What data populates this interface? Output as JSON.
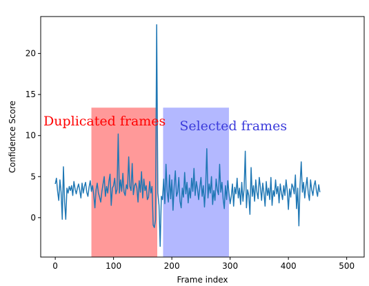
{
  "chart_data": {
    "type": "line",
    "title": "",
    "xlabel": "Frame index",
    "ylabel": "Confidence Score",
    "xlim": [
      -25,
      530
    ],
    "ylim": [
      -4.8,
      24.5
    ],
    "xticks": [
      0,
      100,
      200,
      300,
      400,
      500
    ],
    "yticks": [
      0,
      5,
      10,
      15,
      20
    ],
    "grid": false,
    "line_color": "#1f77b4",
    "regions": [
      {
        "label": "Duplicated frames",
        "x0": 62,
        "x1": 175,
        "y0": -4.8,
        "y1": 13.4,
        "color": "#ff9999",
        "text_color": "#ff0000"
      },
      {
        "label": "Selected frames",
        "x0": 185,
        "x1": 298,
        "y0": -4.8,
        "y1": 13.4,
        "color": "#b3b8ff",
        "text_color": "#3b3bdb"
      }
    ],
    "series": [
      {
        "x0": 0,
        "step": 2,
        "values": [
          4.1,
          4.8,
          3.2,
          2.1,
          4.6,
          3.1,
          -0.2,
          6.2,
          1.9,
          -0.2,
          3.6,
          3.0,
          3.8,
          3.3,
          3.9,
          2.7,
          4.4,
          3.5,
          2.9,
          3.6,
          4.1,
          3.3,
          2.4,
          4.2,
          3.0,
          3.8,
          4.3,
          3.1,
          2.6,
          3.7,
          4.5,
          3.2,
          3.9,
          2.8,
          1.2,
          3.4,
          4.2,
          3.0,
          2.5,
          1.9,
          3.2,
          4.1,
          5.0,
          2.6,
          3.8,
          3.0,
          4.4,
          5.3,
          1.5,
          3.6,
          3.9,
          4.8,
          2.9,
          3.4,
          10.2,
          3.0,
          4.6,
          3.2,
          5.4,
          3.1,
          2.7,
          4.0,
          3.5,
          7.4,
          3.8,
          3.3,
          6.6,
          2.8,
          3.9,
          4.2,
          3.6,
          1.9,
          4.5,
          3.1,
          5.6,
          2.4,
          4.7,
          3.3,
          3.9,
          2.2,
          2.5,
          4.4,
          3.0,
          3.8,
          -0.9,
          -1.2,
          -0.3,
          23.5,
          3.0,
          1.5,
          -3.5,
          2.6,
          2.2,
          4.7,
          1.7,
          6.5,
          3.2,
          1.9,
          5.2,
          2.3,
          4.6,
          0.9,
          3.8,
          5.7,
          2.6,
          3.1,
          4.9,
          2.0,
          1.2,
          3.6,
          2.5,
          5.5,
          2.9,
          4.3,
          1.8,
          3.6,
          2.4,
          4.8,
          3.2,
          6.0,
          2.7,
          4.4,
          3.5,
          2.2,
          3.7,
          4.9,
          2.6,
          3.9,
          1.3,
          3.7,
          8.4,
          2.4,
          4.1,
          3.0,
          5.0,
          1.6,
          3.3,
          2.1,
          4.7,
          3.4,
          2.8,
          6.5,
          3.1,
          4.3,
          2.3,
          1.1,
          3.9,
          2.2,
          4.5,
          3.0,
          1.7,
          2.6,
          4.1,
          1.4,
          3.7,
          2.9,
          4.8,
          2.4,
          3.6,
          1.6,
          4.3,
          2.0,
          3.5,
          8.1,
          1.2,
          3.4,
          2.7,
          0.4,
          6.1,
          2.6,
          3.9,
          2.0,
          4.6,
          3.1,
          2.3,
          4.9,
          3.7,
          2.1,
          4.2,
          3.0,
          1.4,
          4.4,
          2.7,
          3.6,
          2.2,
          4.9,
          1.5,
          3.3,
          2.6,
          4.6,
          2.9,
          3.8,
          1.8,
          4.1,
          3.0,
          2.2,
          3.9,
          2.7,
          4.6,
          3.3,
          1.0,
          3.5,
          2.5,
          4.1,
          3.7,
          2.9,
          5.2,
          1.1,
          3.6,
          -1.0,
          4.0,
          6.8,
          3.1,
          4.3,
          2.4,
          3.8,
          4.9,
          3.0,
          2.1,
          4.6,
          3.4,
          2.7,
          3.9,
          4.5,
          3.3,
          2.6,
          4.0,
          3.1
        ]
      }
    ]
  }
}
